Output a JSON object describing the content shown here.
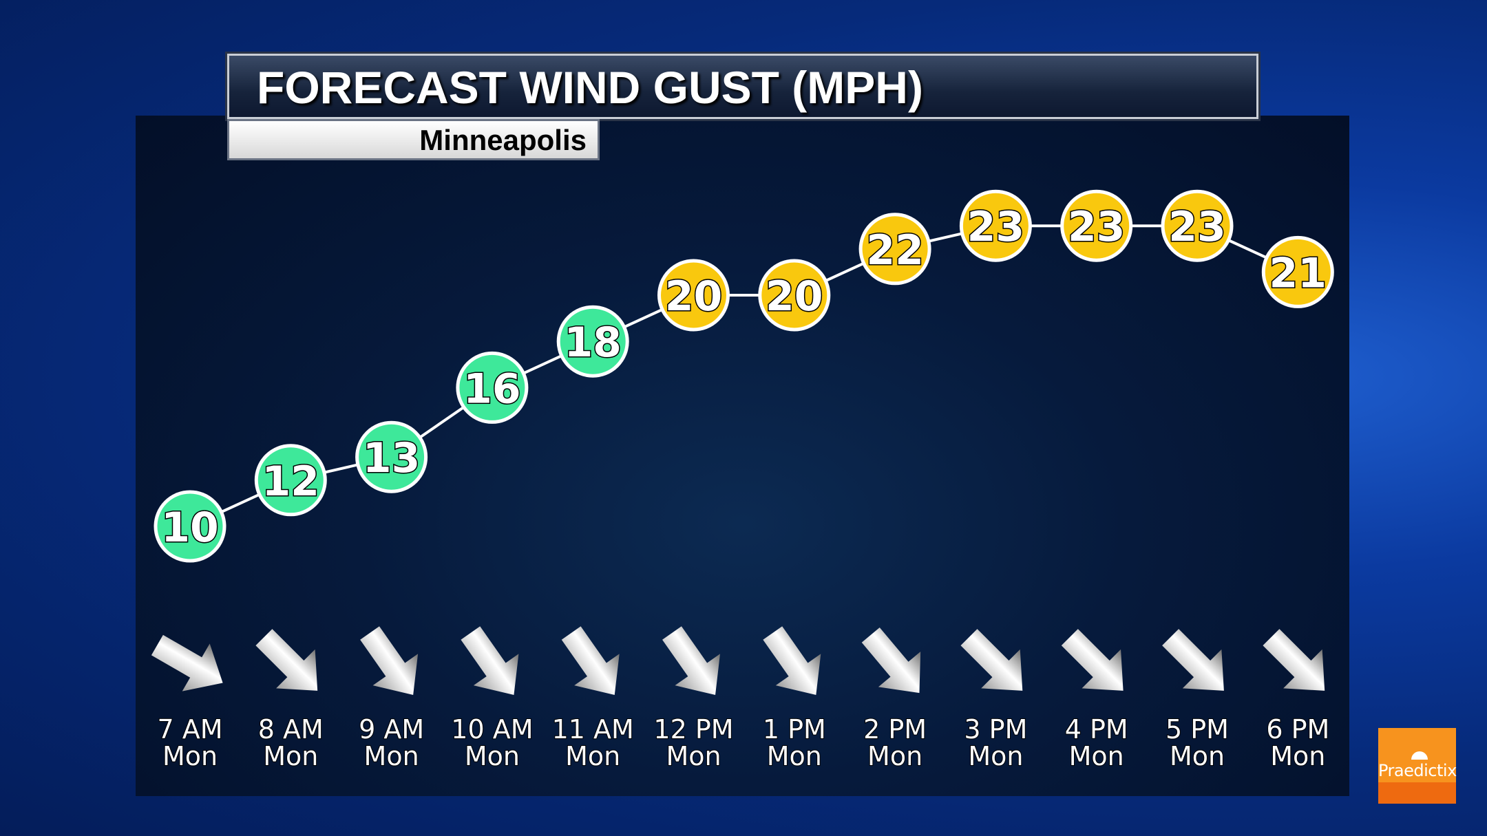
{
  "chart_data": {
    "type": "line",
    "title": "FORECAST WIND GUST (MPH)",
    "subtitle": "Minneapolis",
    "categories": [
      {
        "time": "7 AM",
        "day": "Mon"
      },
      {
        "time": "8 AM",
        "day": "Mon"
      },
      {
        "time": "9 AM",
        "day": "Mon"
      },
      {
        "time": "10 AM",
        "day": "Mon"
      },
      {
        "time": "11 AM",
        "day": "Mon"
      },
      {
        "time": "12 PM",
        "day": "Mon"
      },
      {
        "time": "1 PM",
        "day": "Mon"
      },
      {
        "time": "2 PM",
        "day": "Mon"
      },
      {
        "time": "3 PM",
        "day": "Mon"
      },
      {
        "time": "4 PM",
        "day": "Mon"
      },
      {
        "time": "5 PM",
        "day": "Mon"
      },
      {
        "time": "6 PM",
        "day": "Mon"
      }
    ],
    "values": [
      10,
      12,
      13,
      16,
      18,
      20,
      20,
      22,
      23,
      23,
      23,
      21
    ],
    "wind_arrow_rotation_deg": [
      30,
      45,
      55,
      55,
      55,
      55,
      55,
      50,
      45,
      45,
      45,
      45
    ],
    "color_thresholds": {
      "below_20": "#3ee89a",
      "20_and_above": "#f9c80e"
    },
    "grid": false,
    "legend": "none"
  },
  "logo": {
    "text": "Praedictix",
    "color": "#f7931e"
  }
}
